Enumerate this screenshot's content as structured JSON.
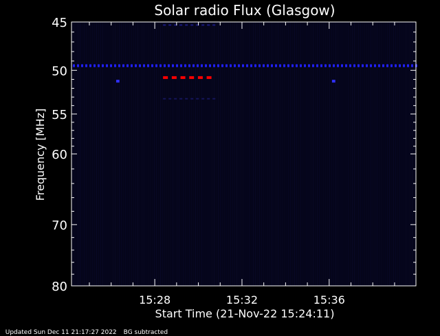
{
  "chart_data": {
    "type": "heatmap",
    "title": "Solar radio Flux (Glasgow)",
    "xlabel": "Start Time (21-Nov-22 15:24:11)",
    "ylabel": "Frequency [MHz]",
    "x_range_minutes": [
      0,
      15.8
    ],
    "y_range_mhz": [
      45,
      80
    ],
    "y_scale": "log",
    "y_ticks": [
      "45",
      "50",
      "55",
      "60",
      "70",
      "80"
    ],
    "x_ticks": [
      "15:28",
      "15:32",
      "15:36"
    ],
    "x_ticks_minutes": [
      3.82,
      7.82,
      11.82
    ],
    "background_color": "#05051a",
    "features": [
      {
        "name": "interference-line-blue",
        "freq_mhz": 49.5,
        "t_start_min": 0.0,
        "t_end_min": 15.8,
        "color": "#2020ff"
      },
      {
        "name": "interference-burst-red",
        "freq_mhz": 50.8,
        "t_start_min": 4.2,
        "t_end_min": 6.6,
        "color": "#ff0000"
      },
      {
        "name": "faint-line-top",
        "freq_mhz": 45.3,
        "t_start_min": 4.2,
        "t_end_min": 6.6,
        "color": "#1a1a80"
      },
      {
        "name": "faint-line-lower",
        "freq_mhz": 53.2,
        "t_start_min": 4.2,
        "t_end_min": 6.6,
        "color": "#15155a"
      },
      {
        "name": "spot-left",
        "freq_mhz": 51.2,
        "t_start_min": 2.05,
        "t_end_min": 2.2,
        "color": "#3030ff"
      },
      {
        "name": "spot-right",
        "freq_mhz": 51.2,
        "t_start_min": 11.95,
        "t_end_min": 12.1,
        "color": "#3030ff"
      }
    ]
  },
  "footer": {
    "updated": "Updated Sun Dec 11 21:17:27 2022",
    "note": "BG subtracted"
  }
}
